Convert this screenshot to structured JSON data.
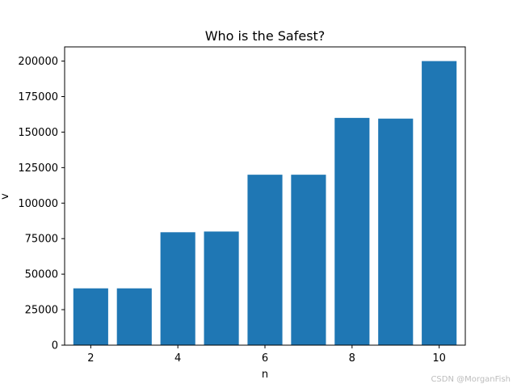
{
  "chart_data": {
    "type": "bar",
    "title": "Who is the Safest?",
    "xlabel": "n",
    "ylabel": "v",
    "x": [
      2,
      3,
      4,
      5,
      6,
      7,
      8,
      9,
      10
    ],
    "values": [
      40000,
      40000,
      79500,
      80000,
      120000,
      120000,
      160000,
      159500,
      200000
    ],
    "xlim": [
      1.4,
      10.6
    ],
    "ylim": [
      0,
      210000
    ],
    "xticks": [
      2,
      4,
      6,
      8,
      10
    ],
    "yticks": [
      0,
      25000,
      50000,
      75000,
      100000,
      125000,
      150000,
      175000,
      200000
    ],
    "bar_width": 0.8,
    "grid": false,
    "bar_color": "#1f77b4"
  },
  "watermark": "CSDN @MorganFish"
}
